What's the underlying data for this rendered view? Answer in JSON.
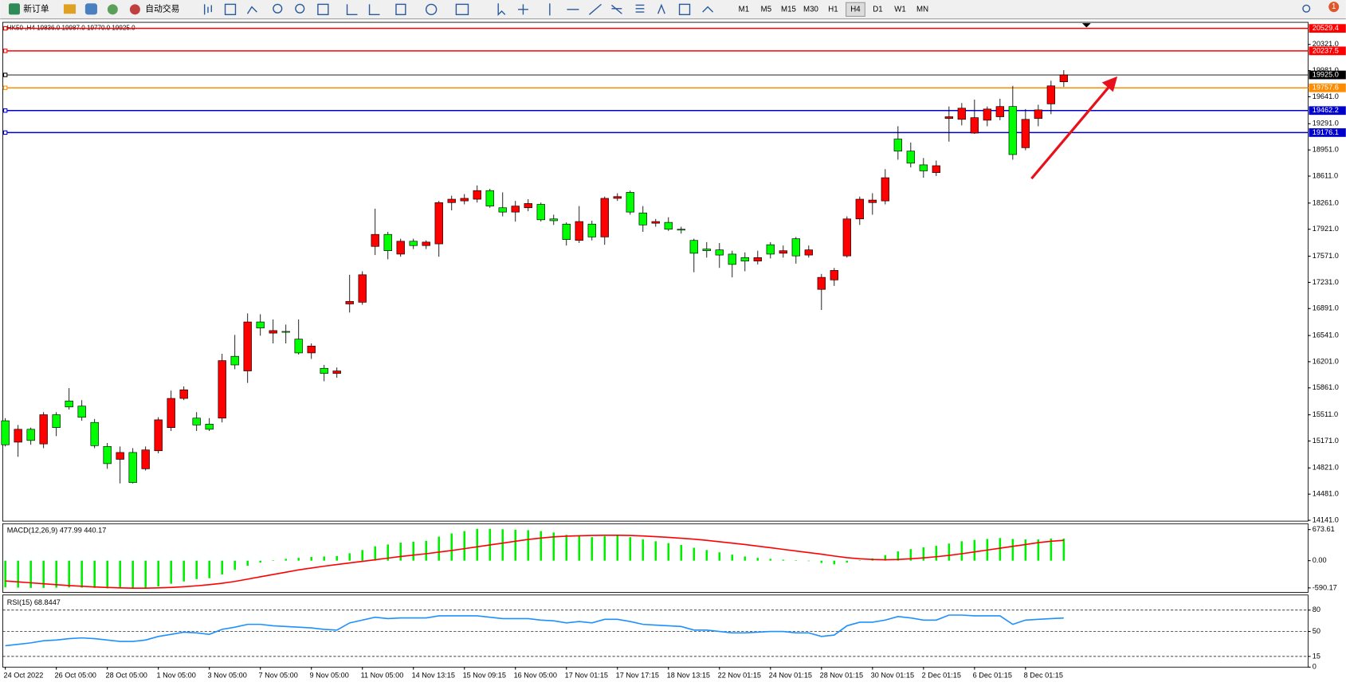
{
  "toolbar": {
    "new_order": "新订单",
    "auto_trading": "自动交易",
    "timeframes": [
      "M1",
      "M5",
      "M15",
      "M30",
      "H1",
      "H4",
      "D1",
      "W1",
      "MN"
    ],
    "active": "H4",
    "badge": "1"
  },
  "chart_data": [
    {
      "type": "candlestick",
      "title": "HK50 ,H4 19836.0 19987.0 19770.0 19925.0",
      "up_color": "#ff0000",
      "down_color": "#00ff00",
      "categories": [
        "24 Oct 2022",
        null,
        null,
        null,
        "26 Oct 05:00",
        null,
        null,
        null,
        "28 Oct 05:00",
        null,
        null,
        null,
        "1 Nov 05:00",
        null,
        null,
        null,
        "3 Nov 05:00",
        null,
        null,
        null,
        "7 Nov 05:00",
        null,
        null,
        null,
        "9 Nov 05:00",
        null,
        null,
        null,
        "11 Nov 05:00",
        null,
        null,
        null,
        "14 Nov 13:15",
        null,
        null,
        null,
        "15 Nov 09:15",
        null,
        null,
        null,
        "16 Nov 05:00",
        null,
        null,
        null,
        "17 Nov 01:15",
        null,
        null,
        null,
        "17 Nov 17:15",
        null,
        null,
        null,
        "18 Nov 13:15",
        null,
        null,
        null,
        "22 Nov 01:15",
        null,
        null,
        null,
        "24 Nov 01:15",
        null,
        null,
        null,
        "28 Nov 01:15",
        null,
        null,
        null,
        "30 Nov 01:15",
        null,
        null,
        null,
        "2 Dec 01:15",
        null,
        null,
        null,
        "6 Dec 01:15",
        null,
        null,
        null,
        "8 Dec 01:15",
        null,
        null,
        null
      ],
      "open": [
        15434,
        15156,
        15323,
        15133,
        15512,
        15691,
        15624,
        15412,
        15100,
        14933,
        15022,
        14810,
        15044,
        15345,
        15724,
        15468,
        15390,
        15468,
        16271,
        16081,
        16717,
        16572,
        16594,
        16494,
        16315,
        16115,
        16048,
        16951,
        16973,
        17698,
        17854,
        17598,
        17765,
        17709,
        17731,
        18267,
        18289,
        18311,
        18423,
        18200,
        18144,
        18200,
        18244,
        18055,
        17988,
        17776,
        17988,
        17821,
        18322,
        18400,
        18133,
        17999,
        18010,
        17921,
        17776,
        17664,
        17653,
        17598,
        17553,
        17508,
        17720,
        17609,
        17798,
        17586,
        17140,
        17263,
        17575,
        18055,
        18267,
        18289,
        19092,
        18936,
        18757,
        18657,
        19359,
        19348,
        19170,
        19337,
        19382,
        19515,
        18980,
        19359,
        19549,
        19836
      ],
      "high": [
        15468,
        15379,
        15345,
        15546,
        15546,
        15858,
        15702,
        15457,
        15145,
        15100,
        15078,
        15100,
        15479,
        15825,
        15880,
        15546,
        15468,
        16304,
        16549,
        16828,
        16817,
        16750,
        16683,
        16750,
        16438,
        16159,
        16126,
        17330,
        17375,
        18188,
        17887,
        17798,
        17798,
        17776,
        18289,
        18356,
        18378,
        18490,
        18445,
        18400,
        18289,
        18311,
        18267,
        18110,
        18010,
        18222,
        18032,
        18345,
        18389,
        18423,
        18222,
        18055,
        18077,
        17954,
        17798,
        17754,
        17742,
        17642,
        17620,
        17642,
        17754,
        17709,
        17821,
        17709,
        17341,
        17419,
        18088,
        18345,
        18389,
        18701,
        19259,
        19047,
        18846,
        18813,
        19515,
        19560,
        19605,
        19515,
        19616,
        19783,
        19482,
        19538,
        19850,
        19987
      ],
      "low": [
        15100,
        14966,
        15122,
        15078,
        15234,
        15579,
        15434,
        15078,
        14810,
        14620,
        14620,
        14788,
        15011,
        15301,
        15702,
        15301,
        15301,
        15412,
        16103,
        15925,
        16538,
        16438,
        16438,
        16293,
        16237,
        15947,
        15992,
        16839,
        16940,
        17586,
        17531,
        17564,
        17664,
        17664,
        17564,
        18166,
        18244,
        18267,
        18200,
        18088,
        18021,
        18155,
        18021,
        17977,
        17709,
        17742,
        17776,
        17720,
        18289,
        18110,
        17887,
        17954,
        17899,
        17865,
        17363,
        17553,
        17419,
        17296,
        17375,
        17464,
        17542,
        17553,
        17475,
        17553,
        16873,
        17185,
        17553,
        17977,
        18110,
        18244,
        18824,
        18724,
        18590,
        18612,
        19058,
        19270,
        19159,
        19259,
        19337,
        18824,
        18947,
        19259,
        19415,
        19770
      ],
      "close": [
        15122,
        15323,
        15178,
        15512,
        15345,
        15613,
        15479,
        15111,
        14877,
        15022,
        14632,
        15055,
        15446,
        15724,
        15836,
        15379,
        15323,
        16215,
        16159,
        16717,
        16639,
        16605,
        16583,
        16315,
        16404,
        16048,
        16081,
        16984,
        17330,
        17854,
        17642,
        17765,
        17709,
        17754,
        18267,
        18311,
        18322,
        18423,
        18222,
        18144,
        18222,
        18255,
        18044,
        18032,
        17787,
        18021,
        17821,
        18322,
        18345,
        18144,
        17977,
        18021,
        17921,
        17910,
        17609,
        17642,
        17586,
        17464,
        17508,
        17553,
        17598,
        17642,
        17575,
        17653,
        17296,
        17386,
        18055,
        18311,
        18300,
        18590,
        18936,
        18779,
        18679,
        18746,
        19382,
        19493,
        19370,
        19482,
        19515,
        18891,
        19348,
        19471,
        19783,
        19925
      ],
      "ylim": [
        14130,
        20597
      ],
      "yticks": [
        {
          "value": 14141,
          "label": "14141.0"
        },
        {
          "value": 14481,
          "label": "14481.0"
        },
        {
          "value": 14821,
          "label": "14821.0"
        },
        {
          "value": 15171,
          "label": "15171.0"
        },
        {
          "value": 15511,
          "label": "15511.0"
        },
        {
          "value": 15861,
          "label": "15861.0"
        },
        {
          "value": 16201,
          "label": "16201.0"
        },
        {
          "value": 16541,
          "label": "16541.0"
        },
        {
          "value": 16891,
          "label": "16891.0"
        },
        {
          "value": 17231,
          "label": "17231.0"
        },
        {
          "value": 17571,
          "label": "17571.0"
        },
        {
          "value": 17921,
          "label": "17921.0"
        },
        {
          "value": 18261,
          "label": "18261.0"
        },
        {
          "value": 18611,
          "label": "18611.0"
        },
        {
          "value": 18951,
          "label": "18951.0"
        },
        {
          "value": 19291,
          "label": "19291.0"
        },
        {
          "value": 19641,
          "label": "19641.0"
        },
        {
          "value": 19981,
          "label": "19981.0"
        },
        {
          "value": 20321,
          "label": "20321.0"
        }
      ],
      "price_lines": [
        {
          "value": 20529.4,
          "color": "#ff0000"
        },
        {
          "value": 20237.5,
          "color": "#ff0000"
        },
        {
          "value": 19925,
          "label": "19925.0",
          "color": "#000000"
        },
        {
          "value": 19757.6,
          "color": "#ff8c00"
        },
        {
          "value": 19462.2,
          "color": "#0000cd"
        },
        {
          "value": 19176.1,
          "color": "#0000cd"
        }
      ]
    },
    {
      "type": "bar_line",
      "title": "MACD(12,26,9) 477.99 440.17",
      "series": [
        {
          "style": "bar",
          "color": "#00ee00",
          "values": [
            -580,
            -585,
            -590,
            -590,
            -585,
            -580,
            -585,
            -590,
            -600,
            -600,
            -600,
            -590,
            -560,
            -500,
            -450,
            -400,
            -380,
            -300,
            -200,
            -110,
            -40,
            10,
            40,
            60,
            80,
            90,
            100,
            160,
            230,
            310,
            350,
            390,
            410,
            430,
            520,
            590,
            640,
            690,
            690,
            680,
            670,
            660,
            640,
            610,
            560,
            540,
            510,
            530,
            540,
            510,
            460,
            420,
            380,
            340,
            280,
            230,
            180,
            130,
            90,
            60,
            40,
            20,
            10,
            -10,
            -50,
            -80,
            -40,
            10,
            50,
            120,
            200,
            250,
            290,
            320,
            370,
            420,
            450,
            470,
            490,
            470,
            460,
            460,
            480,
            477.99
          ]
        },
        {
          "style": "line",
          "color": "#ff0000",
          "values": [
            -440,
            -460,
            -480,
            -500,
            -520,
            -540,
            -555,
            -570,
            -580,
            -590,
            -595,
            -595,
            -590,
            -580,
            -565,
            -545,
            -520,
            -490,
            -450,
            -400,
            -350,
            -300,
            -250,
            -200,
            -160,
            -120,
            -85,
            -50,
            -15,
            20,
            55,
            90,
            120,
            150,
            185,
            220,
            260,
            300,
            340,
            380,
            420,
            460,
            490,
            515,
            530,
            540,
            545,
            550,
            550,
            545,
            535,
            520,
            505,
            485,
            465,
            440,
            410,
            380,
            350,
            315,
            280,
            245,
            210,
            175,
            140,
            100,
            65,
            40,
            25,
            20,
            25,
            40,
            60,
            85,
            115,
            150,
            190,
            230,
            270,
            310,
            350,
            390,
            420,
            440.17
          ]
        }
      ],
      "ylim": [
        -688,
        800
      ],
      "yticks": [
        673.61,
        {
          "value": 0,
          "label": "0.00"
        },
        -590.17
      ]
    },
    {
      "type": "line",
      "title": "RSI(15) 68.8447",
      "series": [
        {
          "color": "#1e90ff",
          "values": [
            30,
            32,
            34,
            37,
            38,
            40,
            41,
            40,
            38,
            36,
            36,
            38,
            43,
            46,
            49,
            48,
            46,
            53,
            56,
            60,
            60,
            58,
            57,
            56,
            55,
            53,
            52,
            62,
            66,
            70,
            68,
            69,
            69,
            69,
            72,
            72,
            72,
            72,
            70,
            68,
            68,
            68,
            66,
            65,
            62,
            64,
            62,
            67,
            67,
            64,
            60,
            59,
            58,
            57,
            52,
            52,
            50,
            48,
            48,
            49,
            50,
            50,
            48,
            48,
            43,
            45,
            58,
            63,
            63,
            66,
            71,
            69,
            66,
            66,
            73,
            73,
            72,
            72,
            72,
            60,
            66,
            67,
            68,
            68.8447
          ]
        }
      ],
      "ylim": [
        0,
        100
      ],
      "yticks": [
        80,
        50,
        15,
        0
      ]
    }
  ]
}
